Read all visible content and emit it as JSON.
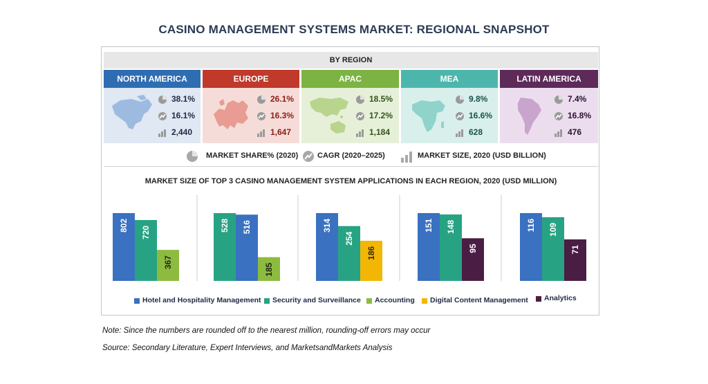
{
  "title": "CASINO MANAGEMENT SYSTEMS MARKET: REGIONAL SNAPSHOT",
  "by_region_label": "BY REGION",
  "colors": {
    "north_america": "#2f6db3",
    "europe": "#c0392b",
    "apac": "#7cb342",
    "mea": "#4db6ac",
    "latin_america": "#5e2a5a",
    "hotel": "#3a71c1",
    "security": "#27a383",
    "accounting": "#8dbb40",
    "digital": "#f2b705",
    "analytics": "#4a1e44"
  },
  "regions": [
    {
      "name": "NORTH AMERICA",
      "share": "38.1%",
      "cagr": "16.1%",
      "size": "2,440"
    },
    {
      "name": "EUROPE",
      "share": "26.1%",
      "cagr": "16.3%",
      "size": "1,647"
    },
    {
      "name": "APAC",
      "share": "18.5%",
      "cagr": "17.2%",
      "size": "1,184"
    },
    {
      "name": "MEA",
      "share": "9.8%",
      "cagr": "16.6%",
      "size": "628"
    },
    {
      "name": "LATIN AMERICA",
      "share": "7.4%",
      "cagr": "16.8%",
      "size": "476"
    }
  ],
  "stat_legend": {
    "market_share": "MARKET SHARE% (2020)",
    "cagr": "CAGR (2020–2025)",
    "market_size": "MARKET SIZE, 2020 (USD BILLION)"
  },
  "chart_data": {
    "type": "bar",
    "title": "MARKET SIZE OF TOP 3 CASINO MANAGEMENT SYSTEM APPLICATIONS  IN EACH REGION, 2020 (USD MILLION)",
    "groups": [
      {
        "region": "NORTH AMERICA",
        "bars": [
          {
            "series": "Hotel and Hospitality Management",
            "value": 802
          },
          {
            "series": "Security and Surveillance",
            "value": 720
          },
          {
            "series": "Accounting",
            "value": 367
          }
        ]
      },
      {
        "region": "EUROPE",
        "bars": [
          {
            "series": "Security and Surveillance",
            "value": 528
          },
          {
            "series": "Hotel and Hospitality Management",
            "value": 516
          },
          {
            "series": "Accounting",
            "value": 185
          }
        ]
      },
      {
        "region": "APAC",
        "bars": [
          {
            "series": "Hotel and Hospitality Management",
            "value": 314
          },
          {
            "series": "Security and Surveillance",
            "value": 254
          },
          {
            "series": "Digital Content Management",
            "value": 186
          }
        ]
      },
      {
        "region": "MEA",
        "bars": [
          {
            "series": "Hotel and Hospitality Management",
            "value": 151
          },
          {
            "series": "Security and Surveillance",
            "value": 148
          },
          {
            "series": "Analytics",
            "value": 95
          }
        ]
      },
      {
        "region": "LATIN AMERICA",
        "bars": [
          {
            "series": "Hotel and Hospitality Management",
            "value": 116
          },
          {
            "series": "Security and Surveillance",
            "value": 109
          },
          {
            "series": "Analytics",
            "value": 71
          }
        ]
      }
    ],
    "legend": [
      "Hotel and Hospitality Management",
      "Security and Surveillance",
      "Accounting",
      "Digital Content Management",
      "Analytics"
    ]
  },
  "note": "Note: Since the numbers are rounded off to the nearest million, rounding-off errors may occur",
  "source": "Source: Secondary Literature, Expert Interviews, and MarketsandMarkets Analysis"
}
